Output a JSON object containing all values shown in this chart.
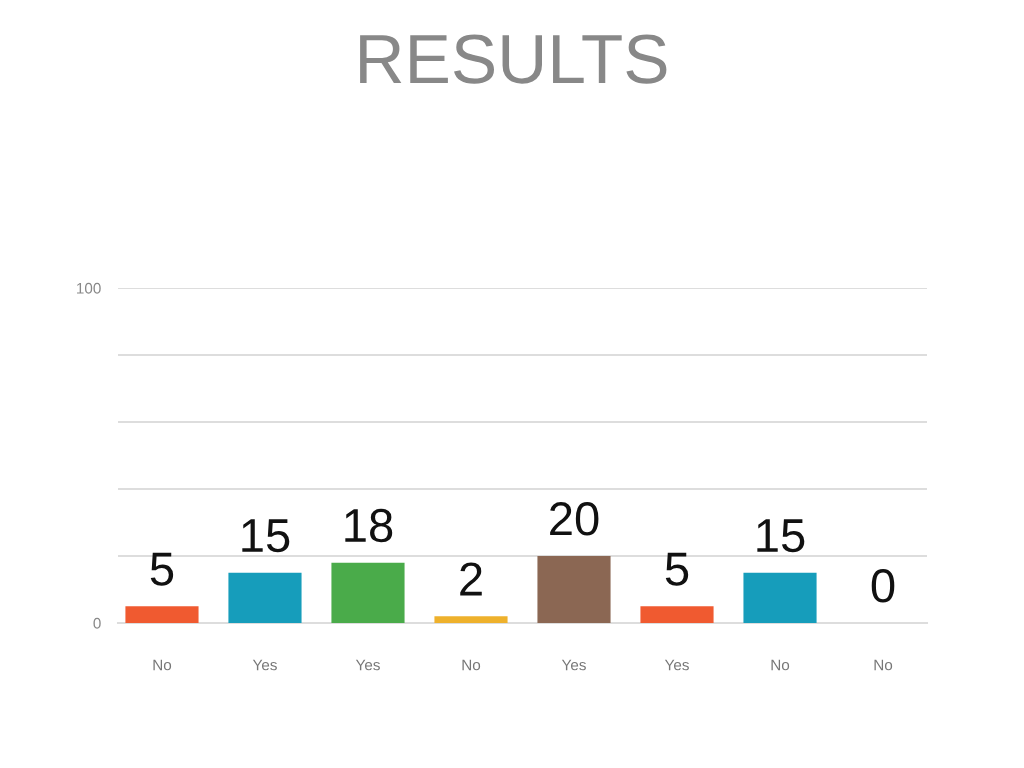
{
  "chart_data": {
    "type": "bar",
    "title": "RESULTS",
    "categories": [
      "No",
      "Yes",
      "Yes",
      "No",
      "Yes",
      "Yes",
      "No",
      "No"
    ],
    "values": [
      5,
      15,
      18,
      2,
      20,
      5,
      15,
      0
    ],
    "colors": [
      "#f05a30",
      "#169dbb",
      "#4aab4a",
      "#eeb12c",
      "#8b6753",
      "#f05a30",
      "#169dbb",
      "#4aab4a"
    ],
    "ylim": [
      0,
      100
    ],
    "yticks": [
      0,
      {
        "value": 20,
        "label": null
      },
      {
        "value": 40,
        "label": null
      },
      {
        "value": 60,
        "label": null
      },
      {
        "value": 80,
        "label": null
      },
      100
    ],
    "grid": "y",
    "data_labels": true
  }
}
